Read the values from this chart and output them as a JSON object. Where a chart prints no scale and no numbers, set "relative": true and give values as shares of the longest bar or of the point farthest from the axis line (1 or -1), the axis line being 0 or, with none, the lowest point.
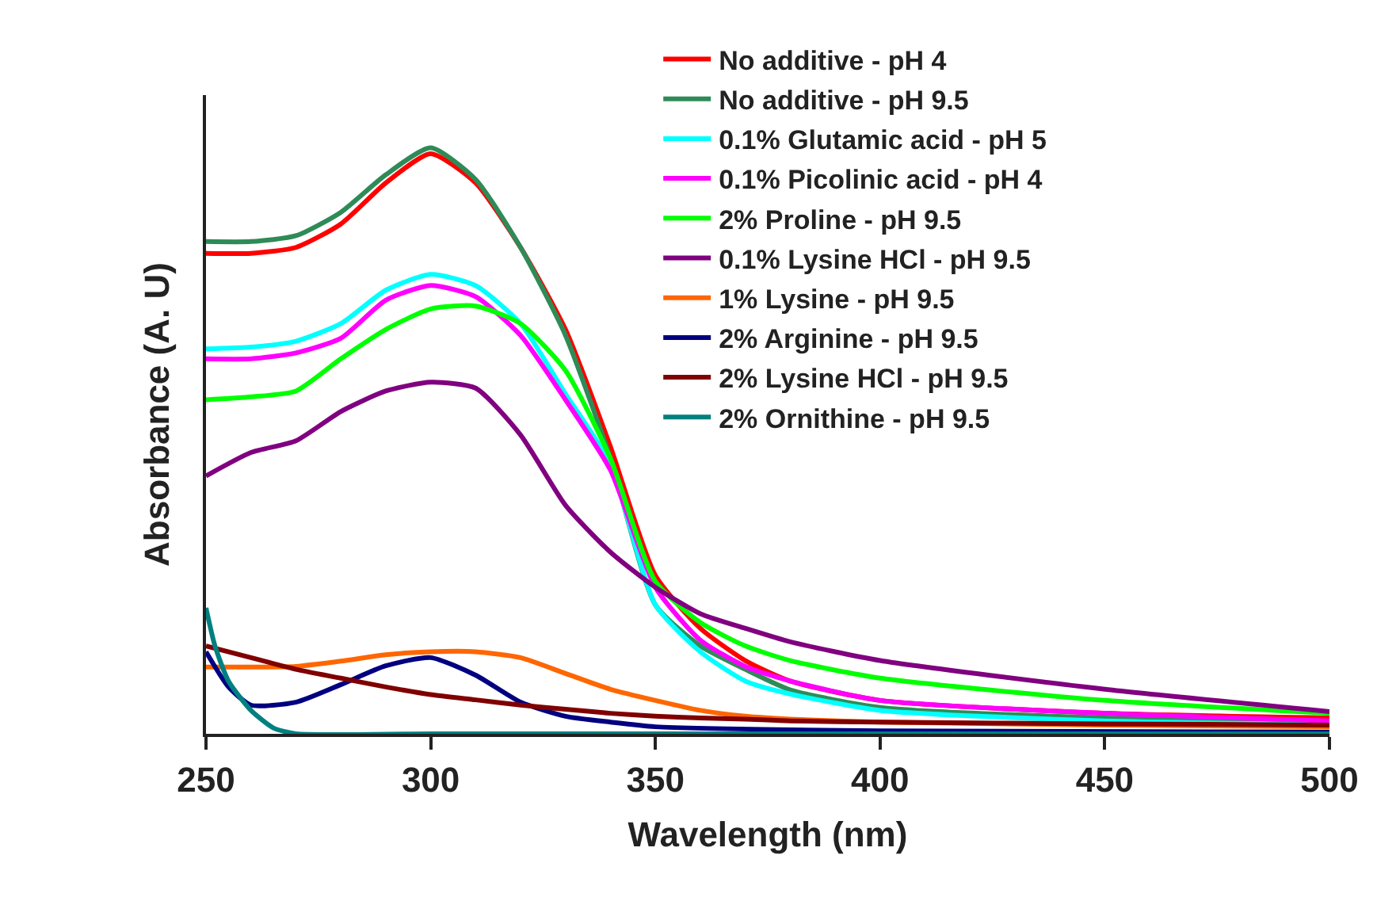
{
  "chart_data": {
    "type": "line",
    "xlabel": "Wavelength (nm)",
    "ylabel": "Absorbance (A. U)",
    "relative": true,
    "x": [
      250,
      260,
      270,
      280,
      290,
      300,
      310,
      320,
      330,
      340,
      350,
      360,
      370,
      380,
      400,
      450,
      500
    ],
    "xlim": [
      250,
      500
    ],
    "xticks": [
      250,
      300,
      350,
      400,
      450,
      500
    ],
    "legend": "top right",
    "marker": "none",
    "line_style": "solid",
    "tick_labels": "x",
    "series": [
      {
        "name": "No additive - pH 4",
        "color": "#ff0000",
        "values": [
          0.82,
          0.82,
          0.83,
          0.87,
          0.94,
          0.99,
          0.94,
          0.83,
          0.69,
          0.49,
          0.27,
          0.18,
          0.125,
          0.09,
          0.057,
          0.035,
          0.027
        ]
      },
      {
        "name": "No additive - pH 9.5",
        "color": "#2e8b57",
        "values": [
          0.84,
          0.84,
          0.85,
          0.89,
          0.954,
          1.0,
          0.946,
          0.83,
          0.68,
          0.47,
          0.22,
          0.15,
          0.11,
          0.075,
          0.045,
          0.027,
          0.02
        ]
      },
      {
        "name": "0.1% Glutamic acid - pH 5",
        "color": "#00ffff",
        "values": [
          0.657,
          0.66,
          0.67,
          0.7,
          0.757,
          0.784,
          0.765,
          0.7,
          0.58,
          0.46,
          0.22,
          0.14,
          0.09,
          0.068,
          0.04,
          0.022,
          0.016
        ]
      },
      {
        "name": "0.1% Picolinic acid - pH 4",
        "color": "#ff00ff",
        "values": [
          0.64,
          0.64,
          0.65,
          0.675,
          0.74,
          0.765,
          0.746,
          0.68,
          0.57,
          0.45,
          0.25,
          0.16,
          0.115,
          0.09,
          0.057,
          0.035,
          0.022
        ]
      },
      {
        "name": "2% Proline - pH 9.5",
        "color": "#00ff00",
        "values": [
          0.57,
          0.575,
          0.585,
          0.64,
          0.69,
          0.725,
          0.73,
          0.7,
          0.62,
          0.47,
          0.26,
          0.19,
          0.15,
          0.125,
          0.095,
          0.057,
          0.035
        ]
      },
      {
        "name": "0.1% Lysine HCl - pH 9.5",
        "color": "#800080",
        "values": [
          0.44,
          0.48,
          0.5,
          0.55,
          0.585,
          0.6,
          0.59,
          0.51,
          0.39,
          0.31,
          0.25,
          0.205,
          0.18,
          0.157,
          0.125,
          0.076,
          0.038
        ]
      },
      {
        "name": "1% Lysine - pH 9.5",
        "color": "#ff6600",
        "values": [
          0.114,
          0.114,
          0.115,
          0.124,
          0.135,
          0.14,
          0.14,
          0.13,
          0.103,
          0.076,
          0.057,
          0.04,
          0.03,
          0.025,
          0.02,
          0.015,
          0.012
        ]
      },
      {
        "name": "2% Arginine - pH 9.5",
        "color": "#000080",
        "x": [
          250,
          255,
          260,
          270,
          280,
          290,
          300,
          310,
          320,
          330,
          340,
          350,
          400,
          500
        ],
        "values": [
          0.14,
          0.08,
          0.049,
          0.054,
          0.084,
          0.116,
          0.13,
          0.1,
          0.054,
          0.03,
          0.02,
          0.012,
          0.005,
          0.003
        ]
      },
      {
        "name": "2% Lysine HCl - pH 9.5",
        "color": "#800000",
        "values": [
          0.15,
          0.13,
          0.11,
          0.095,
          0.08,
          0.067,
          0.058,
          0.049,
          0.042,
          0.035,
          0.03,
          0.027,
          0.025,
          0.022,
          0.02,
          0.017,
          0.015
        ]
      },
      {
        "name": "2% Ornithine - pH 9.5",
        "color": "#008080",
        "x": [
          250,
          252,
          255,
          260,
          265,
          270,
          300,
          400,
          500
        ],
        "values": [
          0.215,
          0.15,
          0.09,
          0.04,
          0.01,
          0,
          0,
          0,
          0
        ]
      }
    ]
  }
}
